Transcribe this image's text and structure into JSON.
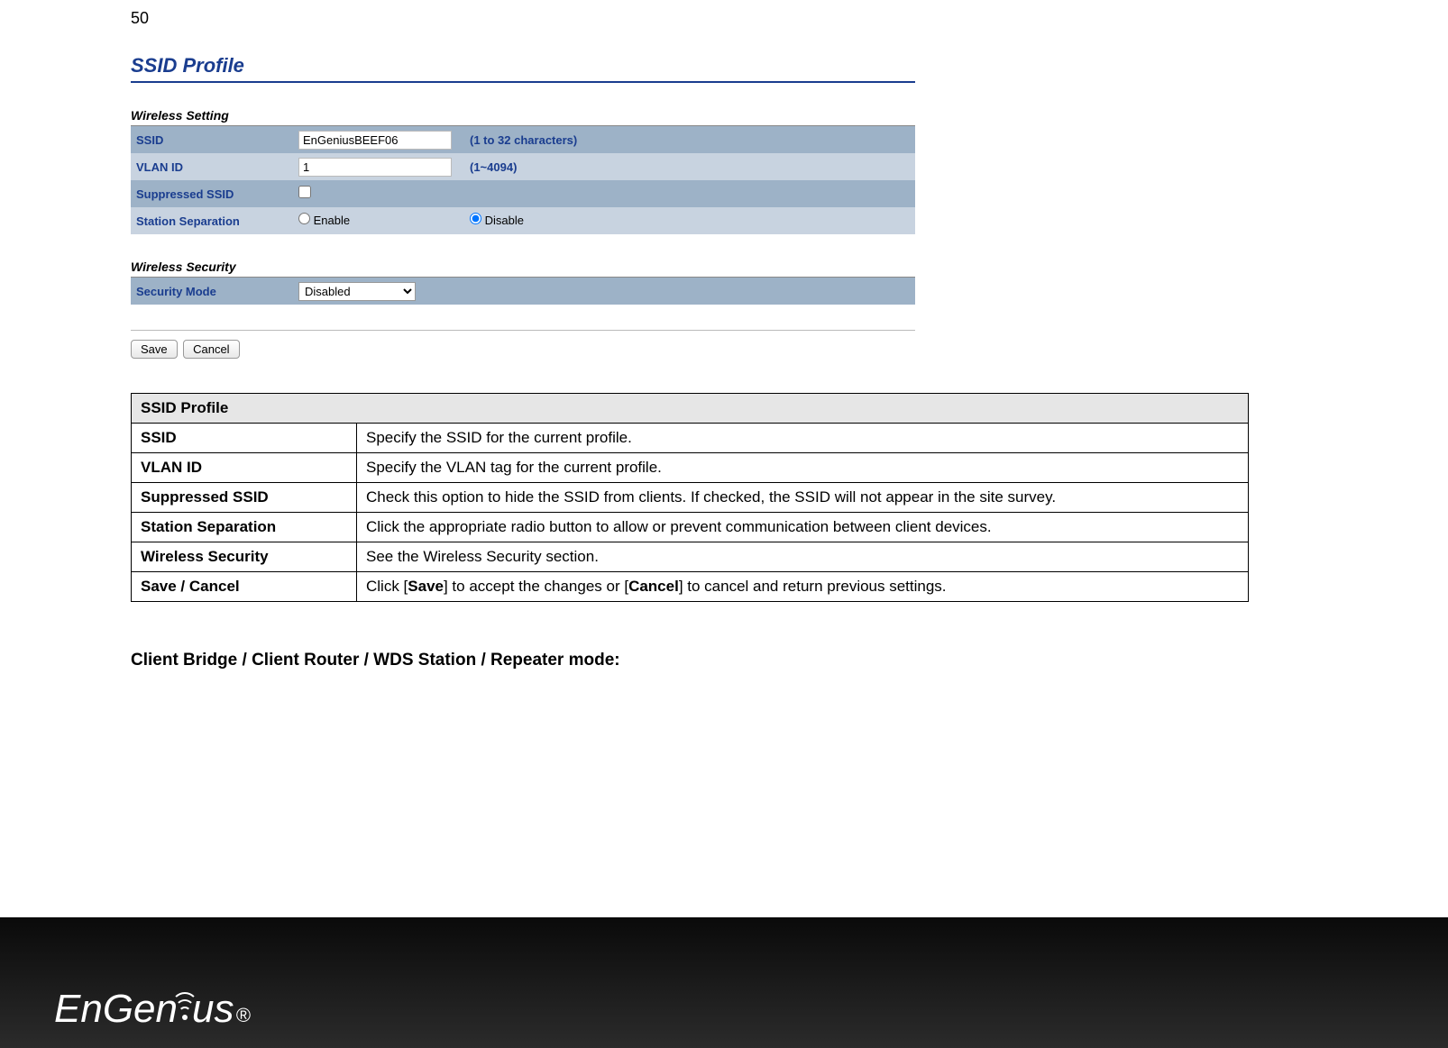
{
  "page_number": "50",
  "panel": {
    "title": "SSID Profile",
    "wireless_setting": {
      "header": "Wireless Setting",
      "ssid_label": "SSID",
      "ssid_value": "EnGeniusBEEF06",
      "ssid_hint": "(1 to 32 characters)",
      "vlan_label": "VLAN ID",
      "vlan_value": "1",
      "vlan_hint": "(1~4094)",
      "suppressed_label": "Suppressed SSID",
      "suppressed_checked": false,
      "separation_label": "Station Separation",
      "separation_enable": "Enable",
      "separation_disable": "Disable",
      "separation_value": "disable"
    },
    "wireless_security": {
      "header": "Wireless Security",
      "mode_label": "Security Mode",
      "mode_value": "Disabled"
    },
    "buttons": {
      "save": "Save",
      "cancel": "Cancel"
    }
  },
  "desc_table": {
    "header": "SSID Profile",
    "rows": [
      {
        "key": "SSID",
        "val_parts": [
          {
            "t": "Specify the SSID for the current profile.",
            "b": false
          }
        ]
      },
      {
        "key": "VLAN ID",
        "val_parts": [
          {
            "t": "Specify the VLAN tag for the current profile.",
            "b": false
          }
        ]
      },
      {
        "key": "Suppressed SSID",
        "val_parts": [
          {
            "t": "Check this option to hide the SSID from clients. If checked, the SSID will not appear in the site survey.",
            "b": false
          }
        ]
      },
      {
        "key": "Station Separation",
        "val_parts": [
          {
            "t": "Click the appropriate radio button to allow or prevent communication between client devices.",
            "b": false
          }
        ]
      },
      {
        "key": "Wireless Security",
        "val_parts": [
          {
            "t": "See the Wireless Security section.",
            "b": false
          }
        ]
      },
      {
        "key": "Save / Cancel",
        "val_parts": [
          {
            "t": "Click [",
            "b": false
          },
          {
            "t": "Save",
            "b": true
          },
          {
            "t": "] to accept the changes or [",
            "b": false
          },
          {
            "t": "Cancel",
            "b": true
          },
          {
            "t": "] to cancel and return previous settings.",
            "b": false
          }
        ]
      }
    ]
  },
  "subheading": "Client Bridge / Client Router / WDS Station / Repeater mode:",
  "footer": {
    "logo_left": "EnGen",
    "logo_right": "us",
    "reg": "®"
  },
  "colors": {
    "accent": "#1a3d8f",
    "row_a": "#9db2c7",
    "row_b": "#c8d3e0",
    "table_hdr": "#e6e6e6",
    "footer_bg": "#1a1a1a"
  }
}
